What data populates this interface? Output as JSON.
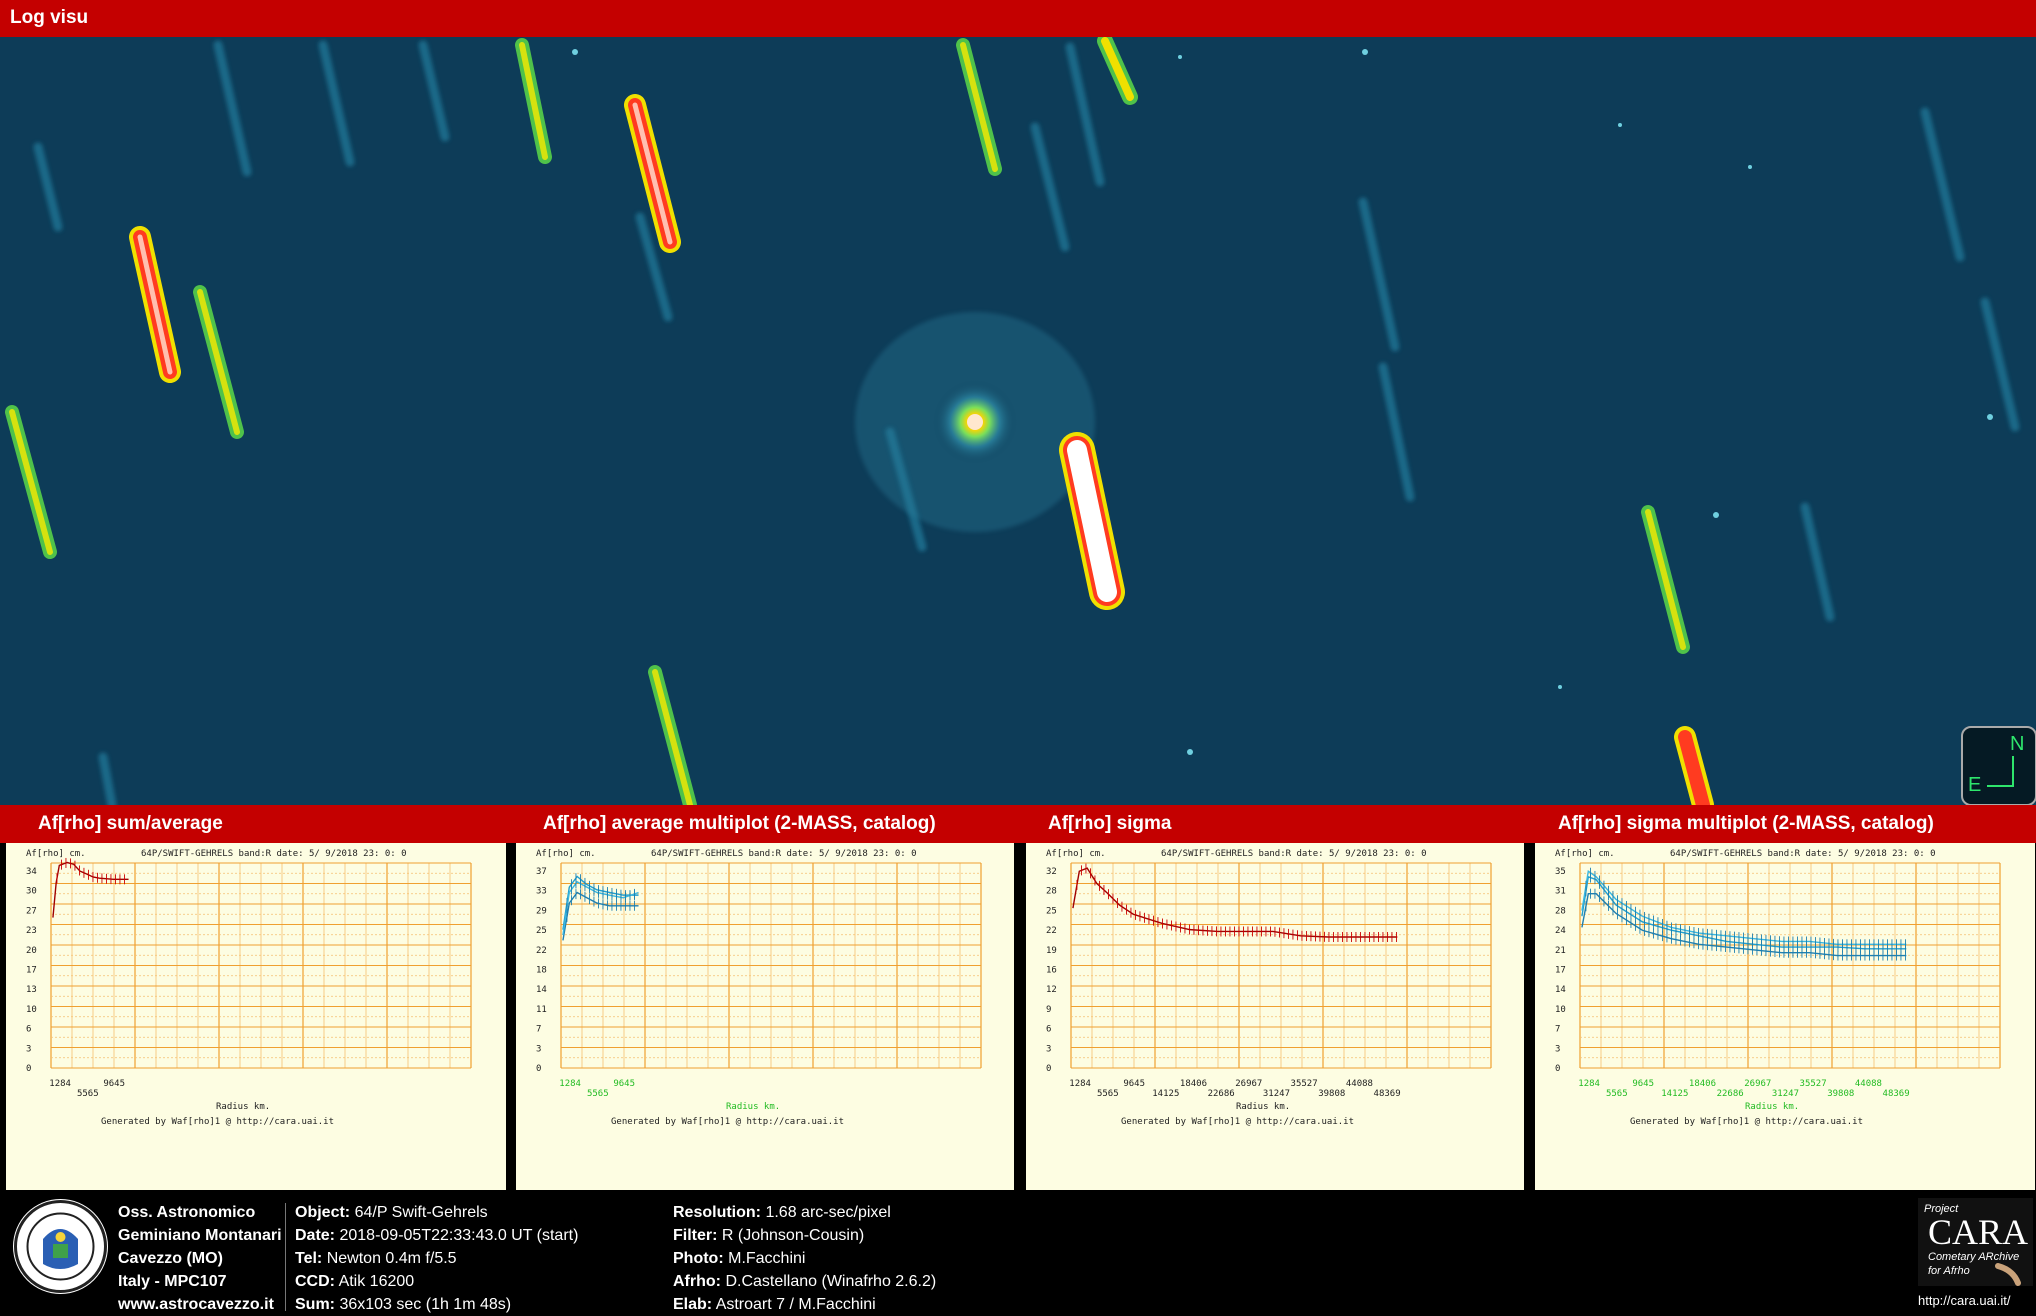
{
  "window": {
    "title": "Log visu"
  },
  "compass": {
    "north": "N",
    "east": "E"
  },
  "panels": [
    {
      "title": "Af[rho] sum/average",
      "ylabel": "Af[rho] cm.",
      "header": "64P/SWIFT-GEHRELS band:R date:  5/ 9/2018 23: 0: 0",
      "yticks": [
        "34",
        "30",
        "27",
        "23",
        "20",
        "17",
        "13",
        "10",
        "6",
        "3",
        "0"
      ],
      "xticks_row1": [
        "1284",
        "9645"
      ],
      "xticks_row2": [
        "5565"
      ],
      "xlabel": "Radius km.",
      "generated": "Generated by Waf[rho]1 @ http://cara.uai.it",
      "tick_color": "#222222"
    },
    {
      "title": "Af[rho] average multiplot (2-MASS, catalog)",
      "ylabel": "Af[rho] cm.",
      "header": "64P/SWIFT-GEHRELS band:R date:  5/ 9/2018 23: 0: 0",
      "yticks": [
        "37",
        "33",
        "29",
        "25",
        "22",
        "18",
        "14",
        "11",
        "7",
        "3",
        "0"
      ],
      "xticks_row1": [
        "1284",
        "9645"
      ],
      "xticks_row2": [
        "5565"
      ],
      "xlabel": "Radius km.",
      "generated": "Generated by Waf[rho]1 @ http://cara.uai.it",
      "tick_color": "#22bb22"
    },
    {
      "title": "Af[rho] sigma",
      "ylabel": "Af[rho] cm.",
      "header": "64P/SWIFT-GEHRELS band:R date:  5/ 9/2018 23: 0: 0",
      "yticks": [
        "32",
        "28",
        "25",
        "22",
        "19",
        "16",
        "12",
        "9",
        "6",
        "3",
        "0"
      ],
      "xticks_row1": [
        "1284",
        "9645",
        "18406",
        "26967",
        "35527",
        "44088"
      ],
      "xticks_row2": [
        "5565",
        "14125",
        "22686",
        "31247",
        "39808",
        "48369"
      ],
      "xlabel": "Radius km.",
      "generated": "Generated by Waf[rho]1 @ http://cara.uai.it",
      "tick_color": "#222222"
    },
    {
      "title": "Af[rho] sigma multiplot (2-MASS, catalog)",
      "ylabel": "Af[rho] cm.",
      "header": "64P/SWIFT-GEHRELS band:R date:  5/ 9/2018 23: 0: 0",
      "yticks": [
        "35",
        "31",
        "28",
        "24",
        "21",
        "17",
        "14",
        "10",
        "7",
        "3",
        "0"
      ],
      "xticks_row1": [
        "1284",
        "9645",
        "18406",
        "26967",
        "35527",
        "44088"
      ],
      "xticks_row2": [
        "5565",
        "14125",
        "22686",
        "31247",
        "39808",
        "48369"
      ],
      "xlabel": "Radius km.",
      "generated": "Generated by Waf[rho]1 @ http://cara.uai.it",
      "tick_color": "#22bb22"
    }
  ],
  "chart_data": [
    {
      "type": "line",
      "title": "Af[rho] sum/average",
      "xlabel": "Radius km.",
      "ylabel": "Af[rho] cm.",
      "series": [
        {
          "x": [
            300,
            800,
            1284,
            2500,
            3500,
            4500,
            5565,
            6500,
            7500,
            8500,
            9645,
            10800,
            12000
          ],
          "values": [
            26,
            32,
            35,
            35.5,
            35.2,
            34,
            33.5,
            33,
            32.8,
            32.7,
            32.6,
            32.6,
            32.6
          ]
        }
      ]
    },
    {
      "type": "line",
      "title": "Af[rho] average multiplot (2-MASS, catalog)",
      "xlabel": "Radius km.",
      "ylabel": "Af[rho] cm.",
      "series": [
        {
          "x": [
            300,
            1284,
            2500,
            4000,
            5565,
            7500,
            9645,
            12000
          ],
          "values": [
            26,
            34,
            36,
            34.5,
            33.5,
            33,
            32.5,
            32.5
          ]
        },
        {
          "x": [
            300,
            1284,
            2500,
            4000,
            5565,
            7500,
            9645,
            12000
          ],
          "values": [
            24,
            31,
            33,
            32,
            31,
            30.5,
            30.5,
            30.5
          ]
        },
        {
          "x": [
            300,
            1284,
            2500,
            4000,
            5565,
            7500,
            9645,
            12000
          ],
          "values": [
            25,
            33,
            35,
            34,
            33,
            32.5,
            32,
            33
          ]
        }
      ]
    },
    {
      "type": "line",
      "title": "Af[rho] sigma",
      "xlabel": "Radius km.",
      "ylabel": "Af[rho] cm.",
      "series": [
        {
          "x": [
            300,
            1284,
            2500,
            4000,
            5565,
            7500,
            9645,
            14125,
            18406,
            22686,
            26967,
            31247,
            35527,
            39808,
            44088,
            48369,
            50500
          ],
          "values": [
            26,
            32,
            32.5,
            30,
            28.5,
            26.5,
            25,
            23.5,
            22.5,
            22.2,
            22.2,
            22.2,
            21.5,
            21.3,
            21.3,
            21.3,
            21.3
          ]
        }
      ]
    },
    {
      "type": "line",
      "title": "Af[rho] sigma multiplot (2-MASS, catalog)",
      "xlabel": "Radius km.",
      "ylabel": "Af[rho] cm.",
      "series": [
        {
          "x": [
            300,
            1284,
            2500,
            5565,
            9645,
            14125,
            18406,
            22686,
            26967,
            31247,
            35527,
            39808,
            44088,
            48369,
            50500
          ],
          "values": [
            27,
            34,
            33.5,
            29,
            26,
            24.5,
            23.5,
            22.5,
            22,
            21.5,
            21.5,
            21.5,
            21.2,
            21.2,
            21.2
          ]
        },
        {
          "x": [
            300,
            1284,
            2500,
            5565,
            9645,
            14125,
            18406,
            22686,
            26967,
            31247,
            35527,
            39808,
            44088,
            48369,
            50500
          ],
          "values": [
            25,
            31,
            31,
            27.5,
            24.5,
            23,
            22,
            21.5,
            21,
            20.5,
            20.5,
            20,
            20,
            20,
            20
          ]
        },
        {
          "x": [
            300,
            1284,
            2500,
            5565,
            9645,
            14125,
            18406,
            22686,
            26967,
            31247,
            35527,
            39808,
            44088,
            48369,
            50500
          ],
          "values": [
            28,
            35,
            34,
            30,
            27,
            25,
            24,
            23.5,
            23,
            22.5,
            22.5,
            22,
            22,
            22,
            22
          ]
        }
      ]
    }
  ],
  "footer": {
    "observatory": [
      "Oss. Astronomico",
      "Geminiano Montanari",
      "Cavezzo (MO)",
      "Italy - MPC107",
      "www.astrocavezzo.it"
    ],
    "col2": [
      {
        "label": "Object:",
        "value": "64/P Swift-Gehrels"
      },
      {
        "label": "Date:",
        "value": "2018-09-05T22:33:43.0 UT (start)"
      },
      {
        "label": "Tel:",
        "value": "Newton 0.4m f/5.5"
      },
      {
        "label": "CCD:",
        "value": "Atik 16200"
      },
      {
        "label": "Sum:",
        "value": "36x103 sec (1h 1m 48s)"
      }
    ],
    "col3": [
      {
        "label": "Resolution:",
        "value": "1.68 arc-sec/pixel"
      },
      {
        "label": "Filter:",
        "value": "R (Johnson-Cousin)"
      },
      {
        "label": "Photo:",
        "value": "M.Facchini"
      },
      {
        "label": "Afrho:",
        "value": "D.Castellano (Winafrho 2.6.2)"
      },
      {
        "label": "Elab:",
        "value": "Astroart 7 / M.Facchini"
      }
    ],
    "cara": {
      "project": "Project",
      "name": "CARA",
      "subtitle1": "Cometary ARchive",
      "subtitle2": "for Afrho",
      "url": "http://cara.uai.it/"
    }
  }
}
